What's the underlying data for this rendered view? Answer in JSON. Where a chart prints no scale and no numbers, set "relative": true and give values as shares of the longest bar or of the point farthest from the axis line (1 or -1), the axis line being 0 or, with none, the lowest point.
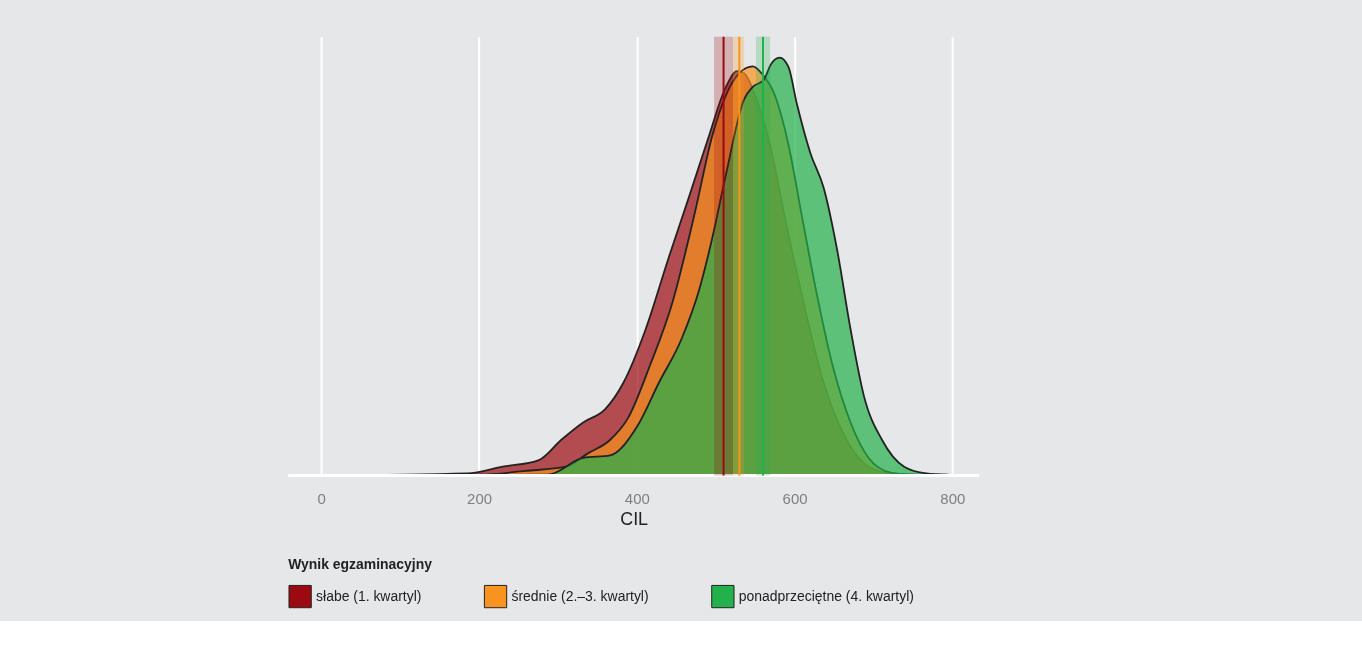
{
  "chart_data": {
    "type": "area",
    "relative": true,
    "xlabel": "CIL",
    "legend_title": "Wynik egzaminacyjny",
    "legend": "bottom",
    "grid": "x",
    "tick_labels": "x",
    "xlim": [
      -42,
      834
    ],
    "xticks": [
      0,
      200,
      400,
      600,
      800
    ],
    "series": [
      {
        "name": "słabe (1. kwartyl)",
        "color": "#9b0a10",
        "x": [
          0,
          185,
          230,
          276,
          304,
          332,
          360,
          383,
          411,
          440,
          468,
          490,
          513,
          527,
          536,
          552,
          570,
          587,
          609,
          637,
          666,
          694,
          722,
          795
        ],
        "values": [
          0,
          0.005,
          0.021,
          0.037,
          0.085,
          0.127,
          0.159,
          0.222,
          0.349,
          0.519,
          0.677,
          0.804,
          0.93,
          0.968,
          0.963,
          0.9,
          0.783,
          0.624,
          0.434,
          0.222,
          0.085,
          0.021,
          0.005,
          0
        ]
      },
      {
        "name": "średnie (2.–3. kwartyl)",
        "color": "#f7931e",
        "x": [
          0,
          202,
          259,
          310,
          338,
          366,
          389,
          417,
          445,
          473,
          496,
          513,
          530,
          547,
          558,
          575,
          592,
          609,
          626,
          648,
          671,
          694,
          722,
          750,
          795
        ],
        "values": [
          0,
          0.002,
          0.011,
          0.021,
          0.053,
          0.085,
          0.138,
          0.265,
          0.413,
          0.624,
          0.815,
          0.91,
          0.963,
          0.979,
          0.963,
          0.91,
          0.794,
          0.624,
          0.455,
          0.265,
          0.127,
          0.042,
          0.007,
          0.002,
          0
        ]
      },
      {
        "name": "ponadprzeciętne (4. kwartyl)",
        "color": "#22b14c",
        "x": [
          0,
          287,
          332,
          366,
          400,
          428,
          457,
          479,
          496,
          513,
          536,
          547,
          561,
          570,
          581,
          592,
          603,
          620,
          637,
          654,
          671,
          688,
          711,
          739,
          767,
          795
        ],
        "values": [
          0,
          0.002,
          0.042,
          0.048,
          0.116,
          0.222,
          0.328,
          0.444,
          0.571,
          0.72,
          0.9,
          0.93,
          0.947,
          0.984,
          1.0,
          0.979,
          0.889,
          0.772,
          0.688,
          0.54,
          0.35,
          0.19,
          0.085,
          0.021,
          0.005,
          0.002
        ]
      }
    ],
    "bands": [
      {
        "axis": "x",
        "from": 498,
        "to": 522,
        "color": "#9b0a10"
      },
      {
        "axis": "x",
        "from": 522,
        "to": 536,
        "color": "#f7931e"
      },
      {
        "axis": "x",
        "from": 551,
        "to": 569,
        "color": "#22b14c"
      }
    ],
    "ref_lines": [
      {
        "axis": "x",
        "value": 510,
        "color": "#9b0a10"
      },
      {
        "axis": "x",
        "value": 530,
        "color": "#f7931e"
      },
      {
        "axis": "x",
        "value": 560,
        "color": "#22b14c"
      }
    ]
  }
}
